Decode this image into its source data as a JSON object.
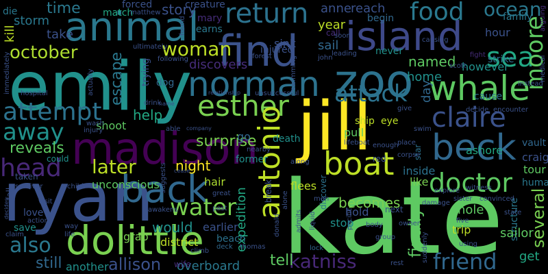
{
  "background_color": "#000000",
  "words": [
    {
      "text": "kate",
      "color": "#5ec962"
    },
    {
      "text": "emily",
      "color": "#21918c"
    },
    {
      "text": "ryan",
      "color": "#3b528b"
    },
    {
      "text": "jill",
      "color": "#fde725"
    },
    {
      "text": "madison",
      "color": "#440154"
    },
    {
      "text": "zoo",
      "color": "#2c728e"
    },
    {
      "text": "dolittle",
      "color": "#7ad151"
    },
    {
      "text": "find",
      "color": "#3b528b"
    },
    {
      "text": "animal",
      "color": "#2a788e"
    },
    {
      "text": "island",
      "color": "#3e4989"
    },
    {
      "text": "back",
      "color": "#31688e"
    },
    {
      "text": "norman",
      "color": "#2c728e"
    },
    {
      "text": "whale",
      "color": "#5ec962"
    },
    {
      "text": "beck",
      "color": "#31688e"
    },
    {
      "text": "boat",
      "color": "#bddf26"
    },
    {
      "text": "attempt",
      "color": "#2c728e"
    },
    {
      "text": "esther",
      "color": "#7ad151"
    },
    {
      "text": "claire",
      "color": "#3b528b"
    },
    {
      "text": "head",
      "color": "#482878"
    },
    {
      "text": "antonio",
      "color": "#bddf26"
    },
    {
      "text": "doctor",
      "color": "#5ec962"
    },
    {
      "text": "return",
      "color": "#2c728e"
    },
    {
      "text": "food",
      "color": "#2a788e"
    },
    {
      "text": "sea",
      "color": "#22a884"
    },
    {
      "text": "moore",
      "color": "#5ec962"
    },
    {
      "text": "attack",
      "color": "#2c728e"
    },
    {
      "text": "woman",
      "color": "#bddf26"
    },
    {
      "text": "away",
      "color": "#21918c"
    },
    {
      "text": "water",
      "color": "#7ad151"
    },
    {
      "text": "friend",
      "color": "#31688e"
    },
    {
      "text": "katniss",
      "color": "#482878"
    },
    {
      "text": "also",
      "color": "#2a788e"
    },
    {
      "text": "october",
      "color": "#addc30"
    },
    {
      "text": "later",
      "color": "#bddf26"
    },
    {
      "text": "allison",
      "color": "#3b528b"
    },
    {
      "text": "ocean",
      "color": "#2a788e"
    },
    {
      "text": "escape",
      "color": "#2a788e"
    },
    {
      "text": "surprise",
      "color": "#7ad151"
    },
    {
      "text": "finally",
      "color": "#5ec962"
    },
    {
      "text": "several",
      "color": "#7ad151"
    },
    {
      "text": "time",
      "color": "#2a788e"
    },
    {
      "text": "story",
      "color": "#3b528b"
    },
    {
      "text": "reveals",
      "color": "#5ec962"
    },
    {
      "text": "discovers",
      "color": "#472d7b"
    },
    {
      "text": "help",
      "color": "#22a884"
    },
    {
      "text": "night",
      "color": "#fde725"
    },
    {
      "text": "would",
      "color": "#21918c"
    },
    {
      "text": "get",
      "color": "#22a884"
    },
    {
      "text": "still",
      "color": "#31688e"
    },
    {
      "text": "overboard",
      "color": "#2a788e"
    },
    {
      "text": "another",
      "color": "#21918c"
    },
    {
      "text": "tell",
      "color": "#5ec962"
    },
    {
      "text": "becomes",
      "color": "#7ad151"
    },
    {
      "text": "anne",
      "color": "#3b528b"
    },
    {
      "text": "reach",
      "color": "#3b528b"
    },
    {
      "text": "kill",
      "color": "#bddf26"
    },
    {
      "text": "storm",
      "color": "#2a788e"
    },
    {
      "text": "take",
      "color": "#3b528b"
    },
    {
      "text": "named",
      "color": "#5ec962"
    },
    {
      "text": "home",
      "color": "#21918c"
    },
    {
      "text": "however",
      "color": "#21918c"
    },
    {
      "text": "hour",
      "color": "#3b528b"
    },
    {
      "text": "sail",
      "color": "#31688e"
    },
    {
      "text": "year",
      "color": "#bddf26"
    },
    {
      "text": "expedition",
      "color": "#22a884"
    },
    {
      "text": "day",
      "color": "#31688e"
    },
    {
      "text": "unconscious",
      "color": "#5ec962"
    },
    {
      "text": "shoot",
      "color": "#5ec962"
    },
    {
      "text": "tour",
      "color": "#5ec962"
    },
    {
      "text": "craig",
      "color": "#3b528b"
    },
    {
      "text": "human",
      "color": "#2a788e"
    },
    {
      "text": "vault",
      "color": "#31688e"
    },
    {
      "text": "ashore",
      "color": "#22a884"
    },
    {
      "text": "structure",
      "color": "#2a788e"
    },
    {
      "text": "hole",
      "color": "#5ec962"
    },
    {
      "text": "trip",
      "color": "#bddf26"
    },
    {
      "text": "sailor",
      "color": "#5ec962"
    },
    {
      "text": "district",
      "color": "#bddf26"
    },
    {
      "text": "earlier",
      "color": "#3b528b"
    },
    {
      "text": "beach",
      "color": "#2c728e"
    },
    {
      "text": "hold",
      "color": "#3b528b"
    },
    {
      "text": "stop",
      "color": "#21918c"
    },
    {
      "text": "inside",
      "color": "#2c728e"
    },
    {
      "text": "like",
      "color": "#7ad151"
    },
    {
      "text": "death",
      "color": "#21918c"
    },
    {
      "text": "hair",
      "color": "#addc30"
    },
    {
      "text": "flees",
      "color": "#bddf26"
    },
    {
      "text": "former",
      "color": "#21918c"
    },
    {
      "text": "ship",
      "color": "#bddf26"
    },
    {
      "text": "eye",
      "color": "#bddf26"
    },
    {
      "text": "pull",
      "color": "#5ec962"
    },
    {
      "text": "go",
      "color": "#31688e"
    },
    {
      "text": "sink",
      "color": "#3b528b"
    },
    {
      "text": "injured",
      "color": "#3b528b"
    },
    {
      "text": "learns",
      "color": "#2a788e"
    },
    {
      "text": "match",
      "color": "#22a884"
    },
    {
      "text": "forced",
      "color": "#3b528b"
    },
    {
      "text": "die",
      "color": "#2a788e"
    },
    {
      "text": "creature",
      "color": "#3b528b"
    },
    {
      "text": "mary",
      "color": "#472d7b"
    },
    {
      "text": "matthew",
      "color": "#3b528b"
    },
    {
      "text": "cause",
      "color": "#2c728e"
    },
    {
      "text": "strike",
      "color": "#2c728e"
    },
    {
      "text": "family",
      "color": "#2a788e"
    },
    {
      "text": "begin",
      "color": "#31688e"
    },
    {
      "text": "never",
      "color": "#21918c"
    },
    {
      "text": "call",
      "color": "#472d7b"
    },
    {
      "text": "dog",
      "color": "#31688e"
    },
    {
      "text": "trying",
      "color": "#3b528b"
    },
    {
      "text": "wife",
      "color": "#472d7b"
    },
    {
      "text": "grab",
      "color": "#7ad151"
    },
    {
      "text": "love",
      "color": "#3b528b"
    },
    {
      "text": "save",
      "color": "#21918c"
    },
    {
      "text": "taken",
      "color": "#3b528b"
    },
    {
      "text": "could",
      "color": "#21918c"
    },
    {
      "text": "fall",
      "color": "#3b528b"
    },
    {
      "text": "next",
      "color": "#3b528b"
    },
    {
      "text": "red",
      "color": "#3b528b"
    },
    {
      "text": "star",
      "color": "#2c728e"
    },
    {
      "text": "swim",
      "color": "#3b528b"
    },
    {
      "text": "discover",
      "color": "#2c728e"
    },
    {
      "text": "break",
      "color": "#3b528b"
    },
    {
      "text": "explore",
      "color": "#3b528b"
    },
    {
      "text": "state",
      "color": "#3b528b"
    },
    {
      "text": "lock",
      "color": "#31688e"
    },
    {
      "text": "thomas",
      "color": "#3b528b"
    },
    {
      "text": "deck",
      "color": "#31688e"
    },
    {
      "text": "five",
      "color": "#3b528b"
    },
    {
      "text": "rest",
      "color": "#3b528b"
    },
    {
      "text": "medical",
      "color": "#3b528b"
    },
    {
      "text": "fight",
      "color": "#472d7b"
    },
    {
      "text": "arguing",
      "color": "#472d7b"
    },
    {
      "text": "instead",
      "color": "#3b528b"
    },
    {
      "text": "give",
      "color": "#3b528b"
    },
    {
      "text": "encounter",
      "color": "#3b528b"
    },
    {
      "text": "decide",
      "color": "#3b528b"
    },
    {
      "text": "witness",
      "color": "#3b528b"
    },
    {
      "text": "damage",
      "color": "#3b528b"
    },
    {
      "text": "using",
      "color": "#3b528b"
    },
    {
      "text": "owner",
      "color": "#3b528b"
    },
    {
      "text": "admits",
      "color": "#3b528b"
    },
    {
      "text": "group",
      "color": "#3b528b"
    },
    {
      "text": "suddenly",
      "color": "#3b528b"
    },
    {
      "text": "corpse",
      "color": "#3b528b"
    },
    {
      "text": "place",
      "color": "#3b528b"
    },
    {
      "text": "enough",
      "color": "#3b528b"
    },
    {
      "text": "lifeboat",
      "color": "#3b528b"
    },
    {
      "text": "body",
      "color": "#3b528b"
    },
    {
      "text": "pacific",
      "color": "#3b528b"
    },
    {
      "text": "liquid",
      "color": "#3b528b"
    },
    {
      "text": "alone",
      "color": "#3b528b"
    },
    {
      "text": "donald",
      "color": "#3b528b"
    },
    {
      "text": "past",
      "color": "#3b528b"
    },
    {
      "text": "great",
      "color": "#3b528b"
    },
    {
      "text": "men",
      "color": "#3b528b"
    },
    {
      "text": "john",
      "color": "#3b528b"
    },
    {
      "text": "soon",
      "color": "#3b528b"
    },
    {
      "text": "leading",
      "color": "#3b528b"
    },
    {
      "text": "causing",
      "color": "#3b528b"
    },
    {
      "text": "scott",
      "color": "#3b528b"
    },
    {
      "text": "forest",
      "color": "#3b528b"
    },
    {
      "text": "found",
      "color": "#3b528b"
    },
    {
      "text": "ultimately",
      "color": "#3b528b"
    },
    {
      "text": "following",
      "color": "#3b528b"
    },
    {
      "text": "unsuccessful",
      "color": "#3b528b"
    },
    {
      "text": "relationship",
      "color": "#3b528b"
    },
    {
      "text": "swimming",
      "color": "#3b528b"
    },
    {
      "text": "nearby",
      "color": "#3b528b"
    },
    {
      "text": "along",
      "color": "#3b528b"
    },
    {
      "text": "convinced",
      "color": "#3b528b"
    },
    {
      "text": "sister",
      "color": "#3b528b"
    },
    {
      "text": "drink",
      "color": "#3b528b"
    },
    {
      "text": "name",
      "color": "#3b528b"
    },
    {
      "text": "actually",
      "color": "#3b528b"
    },
    {
      "text": "able",
      "color": "#3b528b"
    },
    {
      "text": "company",
      "color": "#3b528b"
    },
    {
      "text": "hospital",
      "color": "#3b528b"
    },
    {
      "text": "immediately",
      "color": "#3b528b"
    },
    {
      "text": "wash",
      "color": "#3b528b"
    },
    {
      "text": "injury",
      "color": "#3b528b"
    },
    {
      "text": "survivor",
      "color": "#3b528b"
    },
    {
      "text": "child",
      "color": "#3b528b"
    },
    {
      "text": "visit",
      "color": "#3b528b"
    },
    {
      "text": "action",
      "color": "#3b528b"
    },
    {
      "text": "decides",
      "color": "#3b528b"
    },
    {
      "text": "way",
      "color": "#3b528b"
    },
    {
      "text": "life",
      "color": "#3b528b"
    },
    {
      "text": "claim",
      "color": "#3b528b"
    },
    {
      "text": "suggests",
      "color": "#3b528b"
    },
    {
      "text": "awakens",
      "color": "#3b528b"
    },
    {
      "text": "climb",
      "color": "#3b528b"
    },
    {
      "text": "cease",
      "color": "#3b528b"
    }
  ]
}
